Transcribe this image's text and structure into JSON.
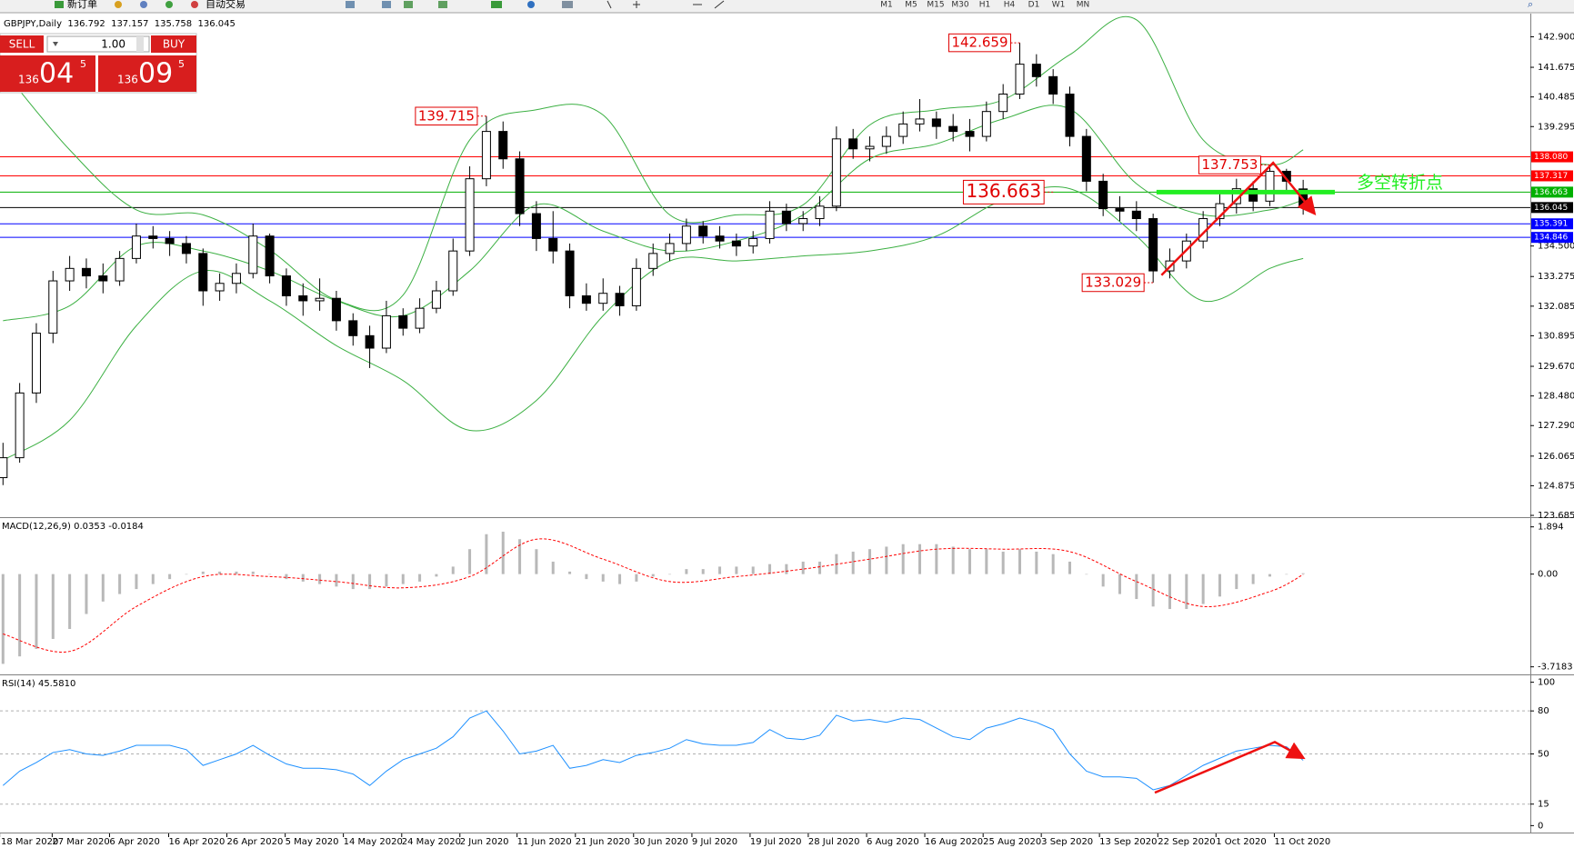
{
  "toolbar": {
    "new_order": "新订单",
    "auto_trading": "自动交易",
    "timeframes": [
      "M1",
      "M5",
      "M15",
      "M30",
      "H1",
      "H4",
      "D1",
      "W1",
      "MN"
    ]
  },
  "trade_panel": {
    "sell": "SELL",
    "lots": "1.00",
    "buy": "BUY",
    "sell_price": [
      "136",
      "04",
      "5"
    ],
    "buy_price": [
      "136",
      "09",
      "5"
    ]
  },
  "chart_data": [
    {
      "type": "candlestick",
      "title": "GBPJPY,Daily",
      "xlim": [
        -0.18,
        91.63
      ],
      "ylim": [
        123.65,
        143.72
      ],
      "xticks": [
        {
          "value": -0.2,
          "label": "18 Mar 2020"
        },
        {
          "value": 2.95,
          "label": "27 Mar 2020"
        },
        {
          "value": 6.39,
          "label": "6 Apr 2020"
        },
        {
          "value": 9.94,
          "label": "16 Apr 2020"
        },
        {
          "value": 13.43,
          "label": "26 Apr 2020"
        },
        {
          "value": 16.93,
          "label": "5 May 2020"
        },
        {
          "value": 20.42,
          "label": "14 May 2020"
        },
        {
          "value": 23.92,
          "label": "24 May 2020"
        },
        {
          "value": 27.41,
          "label": "2 Jun 2020"
        },
        {
          "value": 30.84,
          "label": "11 Jun 2020"
        },
        {
          "value": 34.34,
          "label": "21 Jun 2020"
        },
        {
          "value": 37.83,
          "label": "30 Jun 2020"
        },
        {
          "value": 41.33,
          "label": "9 Jul 2020"
        },
        {
          "value": 44.82,
          "label": "19 Jul 2020"
        },
        {
          "value": 48.31,
          "label": "28 Jul 2020"
        },
        {
          "value": 51.81,
          "label": "6 Aug 2020"
        },
        {
          "value": 55.3,
          "label": "16 Aug 2020"
        },
        {
          "value": 58.8,
          "label": "25 Aug 2020"
        },
        {
          "value": 62.29,
          "label": "3 Sep 2020"
        },
        {
          "value": 65.78,
          "label": "13 Sep 2020"
        },
        {
          "value": 69.28,
          "label": "22 Sep 2020"
        },
        {
          "value": 72.77,
          "label": "1 Oct 2020"
        },
        {
          "value": 76.27,
          "label": "11 Oct 2020"
        }
      ],
      "yticks": [
        {
          "value": 142.9,
          "label": "142.900"
        },
        {
          "value": 141.675,
          "label": "141.675"
        },
        {
          "value": 140.485,
          "label": "140.485"
        },
        {
          "value": 139.295,
          "label": "139.295"
        },
        {
          "value": 134.5,
          "label": "134.500"
        },
        {
          "value": 133.275,
          "label": "133.275"
        },
        {
          "value": 132.085,
          "label": "132.085"
        },
        {
          "value": 130.895,
          "label": "130.895"
        },
        {
          "value": 129.67,
          "label": "129.670"
        },
        {
          "value": 128.48,
          "label": "128.480"
        },
        {
          "value": 127.29,
          "label": "127.290"
        },
        {
          "value": 126.065,
          "label": "126.065"
        },
        {
          "value": 124.875,
          "label": "124.875"
        },
        {
          "value": 123.685,
          "label": "123.685"
        }
      ],
      "ohlc": [
        [
          125.2,
          126.6,
          124.9,
          126.0
        ],
        [
          126.0,
          129.0,
          125.8,
          128.6
        ],
        [
          128.6,
          131.4,
          128.2,
          131.0
        ],
        [
          131.0,
          133.5,
          130.6,
          133.1
        ],
        [
          133.1,
          134.1,
          132.7,
          133.6
        ],
        [
          133.6,
          134.0,
          132.8,
          133.3
        ],
        [
          133.3,
          133.8,
          132.6,
          133.1
        ],
        [
          133.1,
          134.3,
          132.9,
          134.0
        ],
        [
          134.0,
          135.4,
          133.8,
          134.9
        ],
        [
          134.9,
          135.3,
          134.4,
          134.8
        ],
        [
          134.8,
          135.1,
          134.1,
          134.6
        ],
        [
          134.6,
          134.9,
          133.8,
          134.2
        ],
        [
          134.2,
          134.4,
          132.1,
          132.7
        ],
        [
          132.7,
          133.4,
          132.3,
          133.0
        ],
        [
          133.0,
          133.8,
          132.6,
          133.4
        ],
        [
          133.4,
          135.4,
          133.2,
          134.9
        ],
        [
          134.9,
          135.0,
          133.0,
          133.3
        ],
        [
          133.3,
          133.6,
          132.1,
          132.5
        ],
        [
          132.5,
          133.0,
          131.7,
          132.3
        ],
        [
          132.3,
          133.2,
          131.9,
          132.4
        ],
        [
          132.4,
          132.7,
          131.1,
          131.5
        ],
        [
          131.5,
          131.8,
          130.5,
          130.9
        ],
        [
          130.9,
          131.3,
          129.6,
          130.4
        ],
        [
          130.4,
          132.3,
          130.2,
          131.7
        ],
        [
          131.7,
          132.0,
          130.9,
          131.2
        ],
        [
          131.2,
          132.4,
          131.0,
          132.0
        ],
        [
          132.0,
          133.1,
          131.8,
          132.7
        ],
        [
          132.7,
          134.8,
          132.5,
          134.3
        ],
        [
          134.3,
          137.7,
          134.1,
          137.2
        ],
        [
          137.2,
          139.715,
          136.9,
          139.1
        ],
        [
          139.1,
          139.5,
          137.6,
          138.0
        ],
        [
          138.0,
          138.3,
          135.3,
          135.8
        ],
        [
          135.8,
          136.3,
          134.3,
          134.8
        ],
        [
          134.8,
          135.9,
          133.8,
          134.3
        ],
        [
          134.3,
          134.6,
          132.0,
          132.5
        ],
        [
          132.5,
          133.0,
          131.9,
          132.2
        ],
        [
          132.2,
          133.2,
          131.9,
          132.6
        ],
        [
          132.6,
          132.9,
          131.7,
          132.1
        ],
        [
          132.1,
          134.0,
          131.9,
          133.6
        ],
        [
          133.6,
          134.6,
          133.3,
          134.2
        ],
        [
          134.2,
          135.0,
          133.9,
          134.6
        ],
        [
          134.6,
          135.6,
          134.3,
          135.3
        ],
        [
          135.3,
          135.5,
          134.6,
          134.9
        ],
        [
          134.9,
          135.3,
          134.4,
          134.7
        ],
        [
          134.7,
          135.0,
          134.1,
          134.5
        ],
        [
          134.5,
          135.1,
          134.2,
          134.8
        ],
        [
          134.8,
          136.3,
          134.6,
          135.9
        ],
        [
          135.9,
          136.2,
          135.1,
          135.4
        ],
        [
          135.4,
          135.9,
          135.1,
          135.6
        ],
        [
          135.6,
          136.5,
          135.3,
          136.1
        ],
        [
          136.1,
          139.3,
          135.9,
          138.8
        ],
        [
          138.8,
          139.2,
          138.0,
          138.4
        ],
        [
          138.4,
          138.9,
          137.9,
          138.5
        ],
        [
          138.5,
          139.3,
          138.2,
          138.9
        ],
        [
          138.9,
          139.9,
          138.6,
          139.4
        ],
        [
          139.4,
          140.4,
          139.1,
          139.6
        ],
        [
          139.6,
          139.9,
          138.8,
          139.3
        ],
        [
          139.3,
          139.8,
          138.7,
          139.1
        ],
        [
          139.1,
          139.6,
          138.3,
          138.9
        ],
        [
          138.9,
          140.3,
          138.7,
          139.9
        ],
        [
          139.9,
          141.0,
          139.6,
          140.6
        ],
        [
          140.6,
          142.659,
          140.4,
          141.8
        ],
        [
          141.8,
          142.2,
          140.9,
          141.3
        ],
        [
          141.3,
          141.6,
          140.2,
          140.6
        ],
        [
          140.6,
          140.9,
          138.5,
          138.9
        ],
        [
          138.9,
          139.2,
          136.7,
          137.1
        ],
        [
          137.1,
          137.4,
          135.7,
          136.0
        ],
        [
          136.0,
          136.5,
          135.5,
          135.9
        ],
        [
          135.9,
          136.3,
          135.1,
          135.6
        ],
        [
          135.6,
          135.8,
          133.029,
          133.5
        ],
        [
          133.5,
          134.4,
          133.2,
          133.9
        ],
        [
          133.9,
          135.0,
          133.6,
          134.7
        ],
        [
          134.7,
          135.9,
          134.4,
          135.6
        ],
        [
          135.6,
          136.6,
          135.3,
          136.2
        ],
        [
          136.2,
          137.2,
          135.8,
          136.8
        ],
        [
          136.8,
          137.1,
          135.9,
          136.3
        ],
        [
          136.3,
          137.753,
          136.1,
          137.5
        ],
        [
          137.5,
          137.6,
          136.6,
          137.1
        ],
        [
          136.792,
          137.157,
          135.758,
          136.045
        ]
      ],
      "bands": {
        "x": [
          0,
          4,
          8,
          12,
          16,
          20,
          24,
          28,
          32,
          36,
          40,
          44,
          48,
          52,
          56,
          60,
          64,
          68,
          72,
          76,
          78
        ],
        "series": [
          {
            "color": "#3cb043",
            "values": [
              141.57,
              138.36,
              135.95,
              135.75,
              134.34,
              132.33,
              132.53,
              138.76,
              139.97,
              139.76,
              135.75,
              135.75,
              136.15,
              139.36,
              139.97,
              140.37,
              142.18,
              143.58,
              138.76,
              137.76,
              138.36
            ]
          },
          {
            "color": "#3cb043",
            "values": [
              131.5,
              132.1,
              134.5,
              134.3,
              133.5,
              132.3,
              131.7,
              133.5,
              136.15,
              135.1,
              134.3,
              134.7,
              135.75,
              138.0,
              138.6,
              139.6,
              140.0,
              137.0,
              135.75,
              135.95,
              136.35
            ]
          },
          {
            "color": "#3cb043",
            "values": [
              125.9,
              127.5,
              131.3,
              133.5,
              132.3,
              130.5,
              129.1,
              127.1,
              128.3,
              131.7,
              133.9,
              133.9,
              134.1,
              134.3,
              134.9,
              136.35,
              136.8,
              134.9,
              132.3,
              133.6,
              134.0
            ]
          }
        ]
      },
      "levels": [
        {
          "value": 138.08,
          "label": "138.080",
          "color": "#ff0000"
        },
        {
          "value": 137.317,
          "label": "137.317",
          "color": "#ff0000"
        },
        {
          "value": 136.663,
          "label": "136.663",
          "color": "#00b000"
        },
        {
          "value": 136.045,
          "label": "136.045",
          "color": "#000000"
        },
        {
          "value": 135.391,
          "label": "135.391",
          "color": "#0000ff"
        },
        {
          "value": 134.846,
          "label": "134.846",
          "color": "#0000ff"
        }
      ],
      "annotations": [
        {
          "index": 29,
          "value": 139.715,
          "label": "139.715"
        },
        {
          "index": 61,
          "value": 142.659,
          "label": "142.659"
        },
        {
          "index": 76,
          "value": 137.753,
          "label": "137.753"
        },
        {
          "index": 63,
          "value": 136.663,
          "label": "136.663",
          "large": true
        },
        {
          "index": 69,
          "value": 133.029,
          "label": "133.029"
        }
      ],
      "highlight": {
        "from": 69.2,
        "to": 79.9,
        "value": 136.663,
        "label": "多空转折点",
        "color": "#22ee22"
      },
      "arrows": [
        {
          "x": [
            69.5,
            76.2,
            78.6
          ],
          "y": [
            133.33,
            137.84,
            135.87
          ],
          "color": "#ee1111"
        }
      ]
    },
    {
      "type": "macd",
      "title": "MACD(12,26,9) 0.0353 -0.0184",
      "xlim": [
        -0.18,
        91.63
      ],
      "ylim": [
        -3.84,
        2.21
      ],
      "yticks": [
        1.894,
        {
          "value": 0,
          "label": "0.00"
        },
        -3.7183
      ],
      "color": "#b8b8b8",
      "values": [
        -3.6,
        -3.3,
        -3.0,
        -2.6,
        -2.2,
        -1.6,
        -1.1,
        -0.8,
        -0.6,
        -0.4,
        -0.2,
        0.0,
        0.1,
        0.1,
        0.1,
        0.1,
        0.0,
        -0.2,
        -0.3,
        -0.4,
        -0.5,
        -0.6,
        -0.6,
        -0.5,
        -0.4,
        -0.3,
        -0.1,
        0.3,
        1.0,
        1.6,
        1.7,
        1.4,
        1.0,
        0.5,
        0.1,
        -0.2,
        -0.3,
        -0.4,
        -0.3,
        -0.1,
        0.0,
        0.2,
        0.2,
        0.3,
        0.3,
        0.3,
        0.4,
        0.4,
        0.5,
        0.5,
        0.8,
        0.9,
        1.0,
        1.1,
        1.2,
        1.2,
        1.2,
        1.1,
        1.0,
        1.0,
        0.9,
        1.0,
        0.9,
        0.8,
        0.5,
        0.0,
        -0.5,
        -0.8,
        -1.0,
        -1.3,
        -1.4,
        -1.4,
        -1.2,
        -0.9,
        -0.6,
        -0.4,
        -0.1,
        0.0,
        0.0353
      ],
      "signal": {
        "color": "#ff0000",
        "x": [
          0,
          4,
          8,
          12,
          16,
          20,
          24,
          28,
          32,
          36,
          40,
          44,
          48,
          52,
          56,
          60,
          64,
          68,
          72,
          76,
          78
        ],
        "values": [
          -2.4,
          -3.1,
          -1.3,
          -0.1,
          -0.1,
          -0.3,
          -0.55,
          -0.1,
          1.4,
          0.6,
          -0.3,
          -0.1,
          0.2,
          0.6,
          1.0,
          1.0,
          0.9,
          -0.3,
          -1.3,
          -0.7,
          -0.0184
        ]
      }
    },
    {
      "type": "line",
      "title": "RSI(14) 45.5810",
      "xlim": [
        -0.18,
        91.63
      ],
      "ylim": [
        -4.2,
        104.2
      ],
      "yticks": [
        100,
        80,
        50,
        15,
        0
      ],
      "levels": [
        80,
        50,
        15
      ],
      "color": "#1e90ff",
      "values": [
        28,
        38,
        44,
        51,
        53,
        50,
        49,
        52,
        56,
        56,
        56,
        53,
        42,
        46,
        50,
        56,
        49,
        43,
        40,
        40,
        39,
        36,
        28,
        38,
        46,
        50,
        54,
        62,
        75,
        80,
        66,
        50,
        52,
        56,
        40,
        42,
        46,
        44,
        49,
        51,
        54,
        60,
        57,
        56,
        56,
        58,
        67,
        61,
        60,
        63,
        77,
        73,
        74,
        72,
        75,
        74,
        68,
        62,
        60,
        68,
        71,
        75,
        72,
        67,
        50,
        38,
        34,
        34,
        33,
        25,
        28,
        35,
        42,
        47,
        52,
        54,
        56,
        55,
        45.581
      ],
      "arrows": [
        {
          "x": [
            69.1,
            76.3,
            77.9
          ],
          "y": [
            23,
            58.3,
            48
          ],
          "color": "#ee1111"
        }
      ]
    }
  ]
}
